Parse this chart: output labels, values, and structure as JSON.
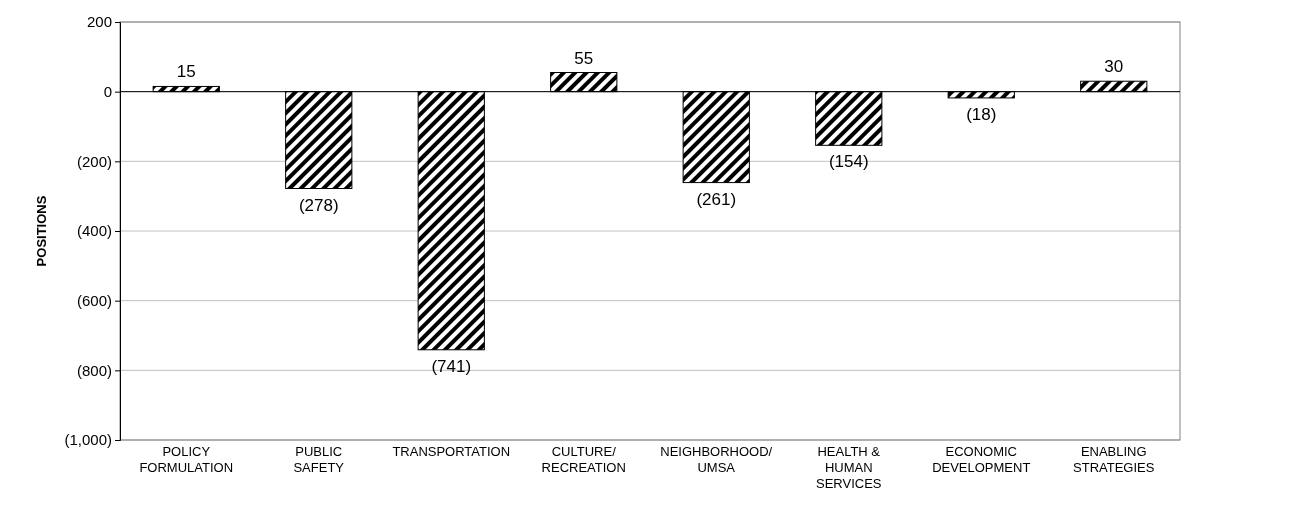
{
  "chart_data": {
    "type": "bar",
    "ylabel": "POSITIONS",
    "categories": [
      "POLICY\nFORMULATION",
      "PUBLIC\nSAFETY",
      "TRANSPORTATION",
      "CULTURE/\nRECREATION",
      "NEIGHBORHOOD/\nUMSA",
      "HEALTH &\nHUMAN\nSERVICES",
      "ECONOMIC\nDEVELOPMENT",
      "ENABLING\nSTRATEGIES"
    ],
    "values": [
      15,
      -278,
      -741,
      55,
      -261,
      -154,
      -18,
      30
    ],
    "value_labels": [
      "15",
      "(278)",
      "(741)",
      "55",
      "(261)",
      "(154)",
      "(18)",
      "30"
    ],
    "color": "#000000",
    "ylim": [
      -1000,
      200
    ],
    "yticks": [
      200,
      0,
      {
        "value": -200,
        "label": "(200)"
      },
      {
        "value": -400,
        "label": "(400)"
      },
      {
        "value": -600,
        "label": "(600)"
      },
      {
        "value": -800,
        "label": "(800)"
      },
      {
        "value": -1000,
        "label": "(1,000)"
      }
    ],
    "grid": "y"
  }
}
